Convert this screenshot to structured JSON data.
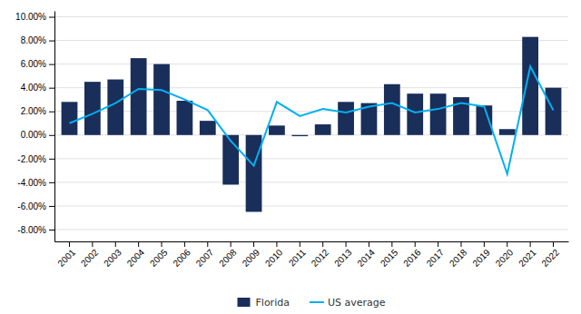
{
  "chart_data": {
    "type": "bar",
    "categories": [
      "2001",
      "2002",
      "2003",
      "2004",
      "2005",
      "2006",
      "2007",
      "2008",
      "2009",
      "2010",
      "2011",
      "2012",
      "2013",
      "2014",
      "2015",
      "2016",
      "2017",
      "2018",
      "2019",
      "2020",
      "2021",
      "2022"
    ],
    "series": [
      {
        "name": "Florida",
        "type": "bar",
        "color": "#1a2e5a",
        "values": [
          0.028,
          0.045,
          0.047,
          0.065,
          0.06,
          0.029,
          0.012,
          -0.042,
          -0.065,
          0.008,
          -0.001,
          0.009,
          0.028,
          0.027,
          0.043,
          0.035,
          0.035,
          0.032,
          0.025,
          0.005,
          0.083,
          0.04
        ]
      },
      {
        "name": "US average",
        "type": "line",
        "color": "#00b0f0",
        "values": [
          0.01,
          0.018,
          0.027,
          0.039,
          0.038,
          0.03,
          0.021,
          -0.005,
          -0.026,
          0.028,
          0.016,
          0.022,
          0.019,
          0.024,
          0.027,
          0.019,
          0.022,
          0.027,
          0.024,
          -0.033,
          0.058,
          0.021
        ]
      }
    ],
    "ylim": [
      -0.09,
      0.105
    ],
    "yticks": [
      {
        "value": -0.08,
        "label": "-8.00%"
      },
      {
        "value": -0.06,
        "label": "-6.00%"
      },
      {
        "value": -0.04,
        "label": "-4.00%"
      },
      {
        "value": -0.02,
        "label": "-2.00%"
      },
      {
        "value": 0.0,
        "label": "0.00%"
      },
      {
        "value": 0.02,
        "label": "2.00%"
      },
      {
        "value": 0.04,
        "label": "4.00%"
      },
      {
        "value": 0.06,
        "label": "6.00%"
      },
      {
        "value": 0.08,
        "label": "8.00%"
      },
      {
        "value": 0.1,
        "label": "10.00%"
      }
    ],
    "grid": true,
    "legend": "bottom"
  }
}
